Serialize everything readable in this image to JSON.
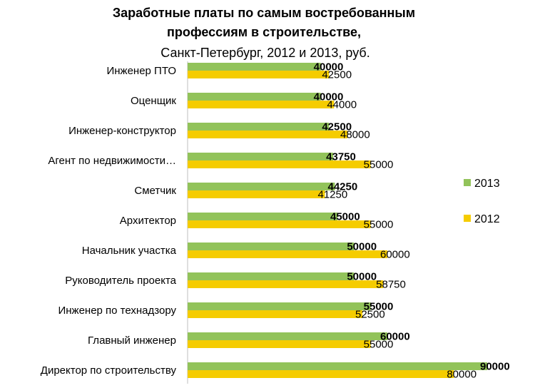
{
  "chart_data": {
    "type": "bar",
    "orientation": "horizontal",
    "title_line1": "Заработные платы по самым востребованным",
    "title_line2": "профессиям в строительстве,",
    "subtitle": "Санкт-Петербург, 2012 и 2013, руб.",
    "categories": [
      "Инженер ПТО",
      "Оценщик",
      "Инженер-конструктор",
      "Агент по недвижимости…",
      "Сметчик",
      "Архитектор",
      "Начальник участка",
      "Руководитель проекта",
      "Инженер по технадзору",
      "Главный инженер",
      "Директор по строительству"
    ],
    "series": [
      {
        "name": "2013",
        "color": "#92c35a",
        "label_bold": true,
        "values": [
          40000,
          40000,
          42500,
          43750,
          44250,
          45000,
          50000,
          50000,
          55000,
          60000,
          90000
        ]
      },
      {
        "name": "2012",
        "color": "#f5cc00",
        "label_bold": false,
        "values": [
          42500,
          44000,
          48000,
          55000,
          41250,
          55000,
          60000,
          58750,
          52500,
          55000,
          80000
        ]
      }
    ],
    "xlim": [
      0,
      100000
    ],
    "grid": false,
    "legend": "right"
  }
}
